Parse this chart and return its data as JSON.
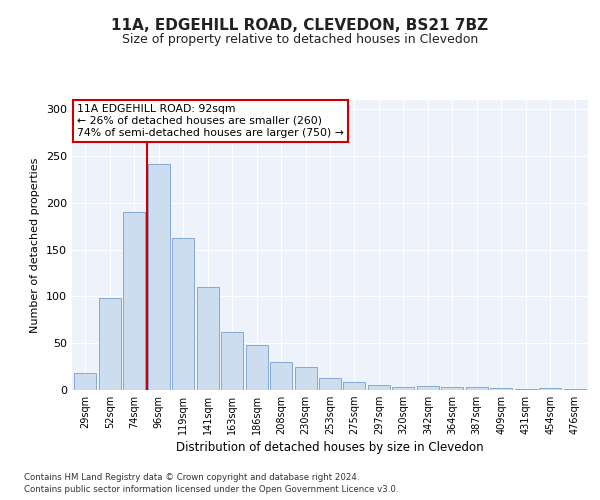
{
  "title1": "11A, EDGEHILL ROAD, CLEVEDON, BS21 7BZ",
  "title2": "Size of property relative to detached houses in Clevedon",
  "xlabel": "Distribution of detached houses by size in Clevedon",
  "ylabel": "Number of detached properties",
  "categories": [
    "29sqm",
    "52sqm",
    "74sqm",
    "96sqm",
    "119sqm",
    "141sqm",
    "163sqm",
    "186sqm",
    "208sqm",
    "230sqm",
    "253sqm",
    "275sqm",
    "297sqm",
    "320sqm",
    "342sqm",
    "364sqm",
    "387sqm",
    "409sqm",
    "431sqm",
    "454sqm",
    "476sqm"
  ],
  "values": [
    18,
    98,
    190,
    242,
    162,
    110,
    62,
    48,
    30,
    25,
    13,
    9,
    5,
    3,
    4,
    3,
    3,
    2,
    1,
    2,
    1
  ],
  "bar_color": "#ccddf0",
  "bar_edge_color": "#85aad4",
  "vline_x_index": 3,
  "vline_color": "#cc0000",
  "annotation_text": "11A EDGEHILL ROAD: 92sqm\n← 26% of detached houses are smaller (260)\n74% of semi-detached houses are larger (750) →",
  "annotation_box_facecolor": "#ffffff",
  "annotation_box_edgecolor": "#cc0000",
  "ylim": [
    0,
    310
  ],
  "yticks": [
    0,
    50,
    100,
    150,
    200,
    250,
    300
  ],
  "footer1": "Contains HM Land Registry data © Crown copyright and database right 2024.",
  "footer2": "Contains public sector information licensed under the Open Government Licence v3.0.",
  "bg_color": "#eef2fa",
  "title1_fontsize": 11,
  "title2_fontsize": 9,
  "xlabel_fontsize": 8.5,
  "ylabel_fontsize": 8
}
